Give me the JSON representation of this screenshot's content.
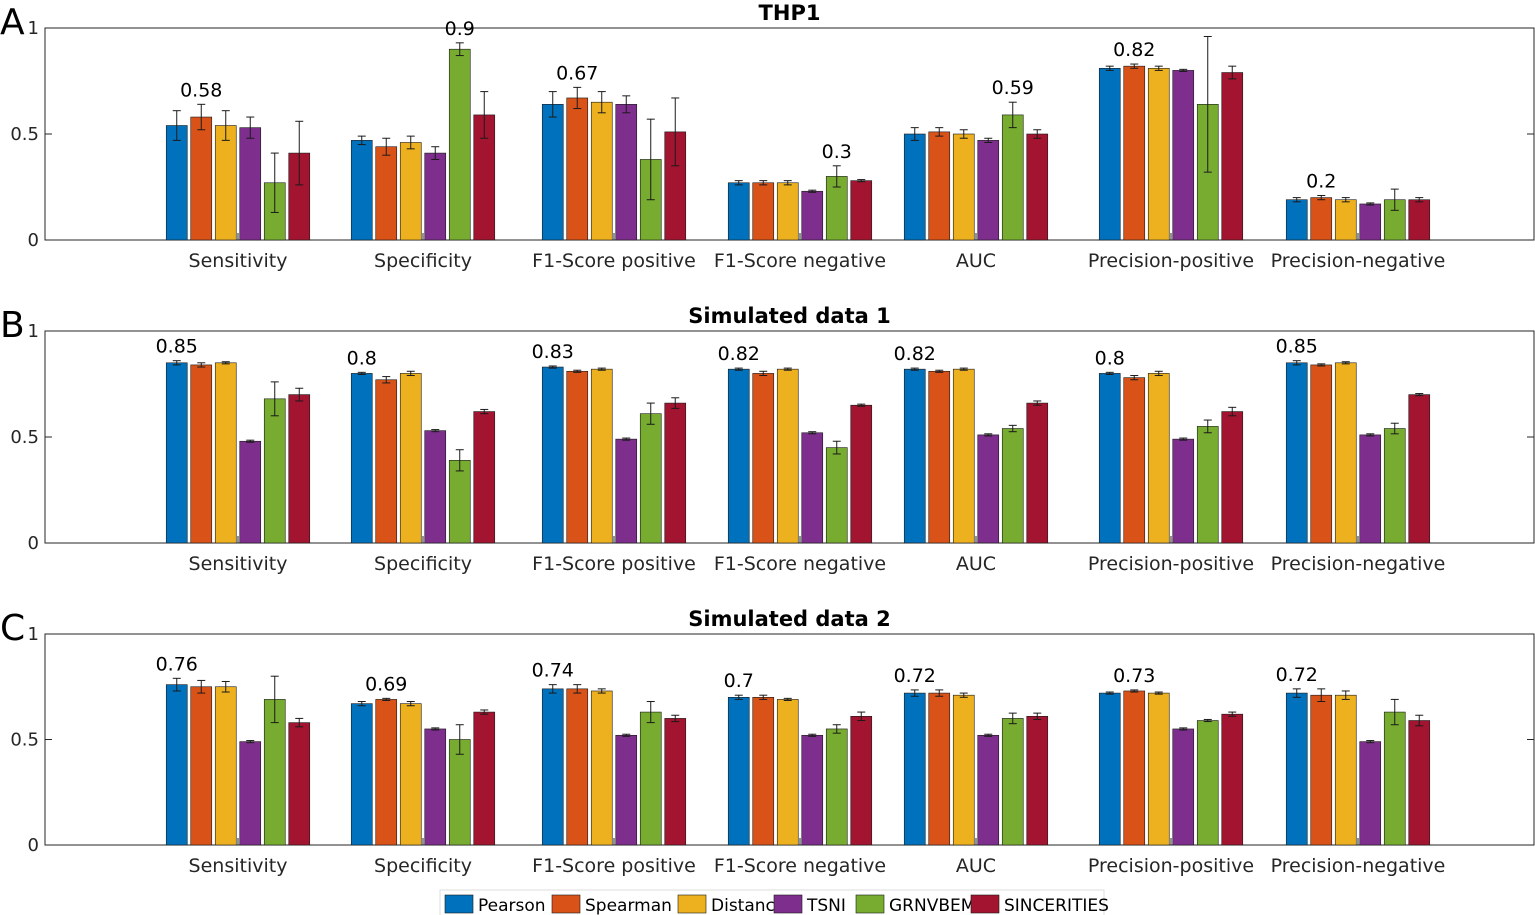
{
  "colors": {
    "Pearson": "#0072BD",
    "Spearman": "#D95319",
    "Distance": "#EDB120",
    "TSNI": "#7E2F8E",
    "GRNVBEM": "#77AC30",
    "SINCERITIES": "#A2142F"
  },
  "legend": [
    "Pearson",
    "Spearman",
    "Distance",
    "TSNI",
    "GRNVBEM",
    "SINCERITIES"
  ],
  "chart_data": [
    {
      "type": "bar",
      "letter": "A",
      "title": "THP1",
      "ylim": [
        0,
        1
      ],
      "yticks": [
        "0",
        "0.5",
        "1"
      ],
      "categories": [
        "Sensitivity",
        "Specificity",
        "F1-Score positive",
        "F1-Score negative",
        "AUC",
        "Precision-positive",
        "Precision-negative"
      ],
      "max_labels": [
        "0.58",
        "0.9",
        "0.67",
        "0.3",
        "0.59",
        "0.82",
        "0.2"
      ],
      "series": [
        {
          "name": "Pearson",
          "values": [
            0.54,
            0.47,
            0.64,
            0.27,
            0.5,
            0.81,
            0.19
          ],
          "err": [
            0.07,
            0.02,
            0.06,
            0.01,
            0.03,
            0.01,
            0.01
          ]
        },
        {
          "name": "Spearman",
          "values": [
            0.58,
            0.44,
            0.67,
            0.27,
            0.51,
            0.82,
            0.2
          ],
          "err": [
            0.06,
            0.04,
            0.05,
            0.01,
            0.02,
            0.01,
            0.01
          ]
        },
        {
          "name": "Distance",
          "values": [
            0.54,
            0.46,
            0.65,
            0.27,
            0.5,
            0.81,
            0.19
          ],
          "err": [
            0.07,
            0.03,
            0.05,
            0.01,
            0.02,
            0.01,
            0.01
          ]
        },
        {
          "name": "TSNI",
          "values": [
            0.53,
            0.41,
            0.64,
            0.23,
            0.47,
            0.8,
            0.17
          ],
          "err": [
            0.05,
            0.03,
            0.04,
            0.005,
            0.01,
            0.005,
            0.005
          ]
        },
        {
          "name": "GRNVBEM",
          "values": [
            0.27,
            0.9,
            0.38,
            0.3,
            0.59,
            0.64,
            0.19
          ],
          "err": [
            0.14,
            0.03,
            0.19,
            0.05,
            0.06,
            0.32,
            0.05
          ]
        },
        {
          "name": "SINCERITIES",
          "values": [
            0.41,
            0.59,
            0.51,
            0.28,
            0.5,
            0.79,
            0.19
          ],
          "err": [
            0.15,
            0.11,
            0.16,
            0.005,
            0.02,
            0.03,
            0.01
          ]
        }
      ]
    },
    {
      "type": "bar",
      "letter": "B",
      "title": "Simulated data 1",
      "ylim": [
        0,
        1
      ],
      "yticks": [
        "0",
        "0.5",
        "1"
      ],
      "categories": [
        "Sensitivity",
        "Specificity",
        "F1-Score positive",
        "F1-Score negative",
        "AUC",
        "Precision-positive",
        "Precision-negative"
      ],
      "max_labels": [
        "0.85",
        "0.8",
        "0.83",
        "0.82",
        "0.82",
        "0.8",
        "0.85"
      ],
      "series": [
        {
          "name": "Pearson",
          "values": [
            0.85,
            0.8,
            0.83,
            0.82,
            0.82,
            0.8,
            0.85
          ],
          "err": [
            0.01,
            0.005,
            0.005,
            0.005,
            0.005,
            0.005,
            0.01
          ]
        },
        {
          "name": "Spearman",
          "values": [
            0.84,
            0.77,
            0.81,
            0.8,
            0.81,
            0.78,
            0.84
          ],
          "err": [
            0.01,
            0.015,
            0.005,
            0.01,
            0.005,
            0.01,
            0.005
          ]
        },
        {
          "name": "Distance",
          "values": [
            0.85,
            0.8,
            0.82,
            0.82,
            0.82,
            0.8,
            0.85
          ],
          "err": [
            0.005,
            0.01,
            0.005,
            0.005,
            0.005,
            0.01,
            0.005
          ]
        },
        {
          "name": "TSNI",
          "values": [
            0.48,
            0.53,
            0.49,
            0.52,
            0.51,
            0.49,
            0.51
          ],
          "err": [
            0.005,
            0.005,
            0.005,
            0.005,
            0.005,
            0.005,
            0.005
          ]
        },
        {
          "name": "GRNVBEM",
          "values": [
            0.68,
            0.39,
            0.61,
            0.45,
            0.54,
            0.55,
            0.54
          ],
          "err": [
            0.08,
            0.05,
            0.05,
            0.03,
            0.015,
            0.03,
            0.025
          ]
        },
        {
          "name": "SINCERITIES",
          "values": [
            0.7,
            0.62,
            0.66,
            0.65,
            0.66,
            0.62,
            0.7
          ],
          "err": [
            0.03,
            0.01,
            0.025,
            0.005,
            0.01,
            0.02,
            0.005
          ]
        }
      ]
    },
    {
      "type": "bar",
      "letter": "C",
      "title": "Simulated data 2",
      "ylim": [
        0,
        1
      ],
      "yticks": [
        "0",
        "0.5",
        "1"
      ],
      "categories": [
        "Sensitivity",
        "Specificity",
        "F1-Score positive",
        "F1-Score negative",
        "AUC",
        "Precision-positive",
        "Precision-negative"
      ],
      "max_labels": [
        "0.76",
        "0.69",
        "0.74",
        "0.7",
        "0.72",
        "0.73",
        "0.72"
      ],
      "series": [
        {
          "name": "Pearson",
          "values": [
            0.76,
            0.67,
            0.74,
            0.7,
            0.72,
            0.72,
            0.72
          ],
          "err": [
            0.03,
            0.01,
            0.02,
            0.01,
            0.015,
            0.005,
            0.02
          ]
        },
        {
          "name": "Spearman",
          "values": [
            0.75,
            0.69,
            0.74,
            0.7,
            0.72,
            0.73,
            0.71
          ],
          "err": [
            0.03,
            0.005,
            0.02,
            0.01,
            0.015,
            0.005,
            0.03
          ]
        },
        {
          "name": "Distance",
          "values": [
            0.75,
            0.67,
            0.73,
            0.69,
            0.71,
            0.72,
            0.71
          ],
          "err": [
            0.025,
            0.01,
            0.01,
            0.005,
            0.01,
            0.005,
            0.02
          ]
        },
        {
          "name": "TSNI",
          "values": [
            0.49,
            0.55,
            0.52,
            0.52,
            0.52,
            0.55,
            0.49
          ],
          "err": [
            0.005,
            0.005,
            0.005,
            0.005,
            0.005,
            0.005,
            0.005
          ]
        },
        {
          "name": "GRNVBEM",
          "values": [
            0.69,
            0.5,
            0.63,
            0.55,
            0.6,
            0.59,
            0.63
          ],
          "err": [
            0.11,
            0.07,
            0.05,
            0.02,
            0.025,
            0.005,
            0.06
          ]
        },
        {
          "name": "SINCERITIES",
          "values": [
            0.58,
            0.63,
            0.6,
            0.61,
            0.61,
            0.62,
            0.59
          ],
          "err": [
            0.02,
            0.01,
            0.015,
            0.02,
            0.015,
            0.01,
            0.025
          ]
        }
      ]
    }
  ]
}
